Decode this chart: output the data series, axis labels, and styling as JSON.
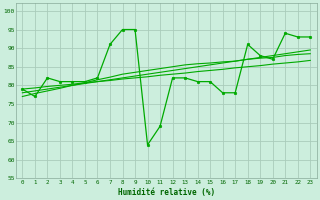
{
  "title": "",
  "xlabel": "Humidité relative (%)",
  "ylabel": "",
  "bg_color": "#cceedd",
  "grid_color": "#aaccbb",
  "line_color": "#00aa00",
  "xlim": [
    -0.5,
    23.5
  ],
  "ylim": [
    55,
    102
  ],
  "xticks": [
    0,
    1,
    2,
    3,
    4,
    5,
    6,
    7,
    8,
    9,
    10,
    11,
    12,
    13,
    14,
    15,
    16,
    17,
    18,
    19,
    20,
    21,
    22,
    23
  ],
  "yticks": [
    55,
    60,
    65,
    70,
    75,
    80,
    85,
    90,
    95,
    100
  ],
  "series_smooth": [
    [
      79.0,
      79.3,
      79.7,
      80.0,
      80.3,
      80.7,
      81.0,
      81.3,
      81.7,
      82.0,
      82.3,
      82.7,
      83.0,
      83.3,
      83.7,
      84.0,
      84.3,
      84.7,
      85.0,
      85.3,
      85.7,
      86.0,
      86.3,
      86.7
    ],
    [
      78.0,
      78.5,
      79.0,
      79.5,
      80.0,
      80.5,
      81.0,
      81.5,
      82.0,
      82.5,
      83.0,
      83.5,
      84.0,
      84.5,
      85.0,
      85.5,
      86.0,
      86.5,
      87.0,
      87.5,
      88.0,
      88.5,
      89.0,
      89.5
    ],
    [
      77.0,
      77.8,
      78.5,
      79.2,
      80.0,
      80.7,
      81.5,
      82.2,
      83.0,
      83.5,
      84.0,
      84.5,
      85.0,
      85.5,
      85.8,
      86.0,
      86.3,
      86.5,
      87.0,
      87.3,
      87.5,
      88.0,
      88.3,
      88.5
    ]
  ],
  "series_jagged": [
    79,
    77,
    82,
    81,
    81,
    81,
    82,
    91,
    95,
    95,
    64,
    69,
    82,
    82,
    81,
    81,
    78,
    78,
    91,
    88,
    87,
    94,
    93,
    93
  ]
}
